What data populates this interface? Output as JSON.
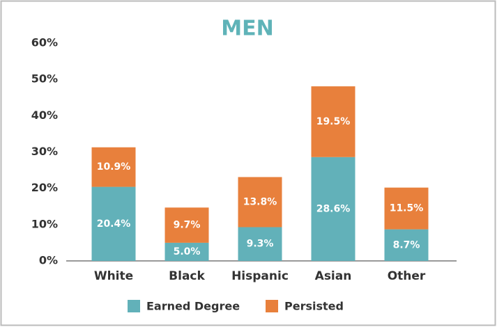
{
  "chart_data": {
    "type": "stacked_bar",
    "title": "MEN",
    "categories": [
      "White",
      "Black",
      "Hispanic",
      "Asian",
      "Other"
    ],
    "series": [
      {
        "name": "Earned Degree",
        "color": "#62b1b9",
        "values": [
          20.4,
          5.0,
          9.3,
          28.6,
          8.7
        ],
        "value_labels": [
          "20.4%",
          "5.0%",
          "9.3%",
          "28.6%",
          "8.7%"
        ]
      },
      {
        "name": "Persisted",
        "color": "#e8803c",
        "values": [
          10.9,
          9.7,
          13.8,
          19.5,
          11.5
        ],
        "value_labels": [
          "10.9%",
          "9.7%",
          "13.8%",
          "19.5%",
          "11.5%"
        ]
      }
    ],
    "ylim": [
      0,
      60
    ],
    "yticks": [
      {
        "value": 0,
        "label": "0%"
      },
      {
        "value": 10,
        "label": "10%"
      },
      {
        "value": 20,
        "label": "20%"
      },
      {
        "value": 30,
        "label": "30%"
      },
      {
        "value": 40,
        "label": "40%"
      },
      {
        "value": 50,
        "label": "50%"
      },
      {
        "value": 60,
        "label": "60%"
      }
    ],
    "grid": false,
    "legend": "bottom"
  }
}
